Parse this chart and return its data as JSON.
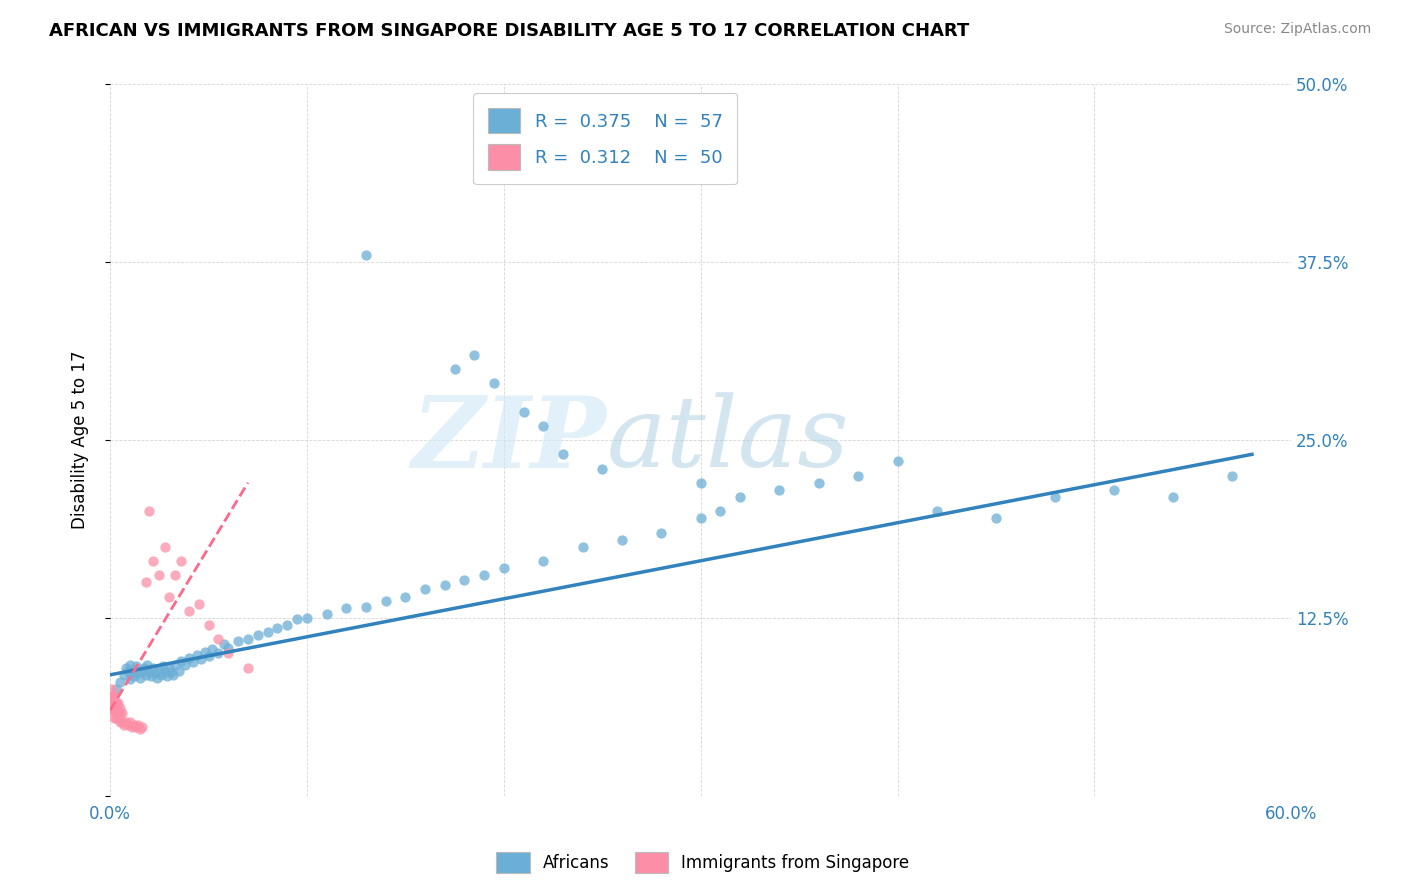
{
  "title": "AFRICAN VS IMMIGRANTS FROM SINGAPORE DISABILITY AGE 5 TO 17 CORRELATION CHART",
  "source": "Source: ZipAtlas.com",
  "ylabel": "Disability Age 5 to 17",
  "xlim": [
    0.0,
    0.6
  ],
  "ylim": [
    0.0,
    0.5
  ],
  "xticks": [
    0.0,
    0.1,
    0.2,
    0.3,
    0.4,
    0.5,
    0.6
  ],
  "yticks": [
    0.0,
    0.125,
    0.25,
    0.375,
    0.5
  ],
  "xticklabels": [
    "0.0%",
    "",
    "",
    "",
    "",
    "",
    "60.0%"
  ],
  "yticklabels_right": [
    "",
    "12.5%",
    "25.0%",
    "37.5%",
    "50.0%"
  ],
  "blue_color": "#6baed6",
  "pink_color": "#fc8fa7",
  "line_color": "#3182bd",
  "dashed_line_color": "#fb6a8a",
  "watermark_zip": "ZIP",
  "watermark_atlas": "atlas",
  "africans_x": [
    0.003,
    0.005,
    0.007,
    0.008,
    0.009,
    0.01,
    0.01,
    0.011,
    0.012,
    0.013,
    0.014,
    0.015,
    0.016,
    0.017,
    0.018,
    0.019,
    0.02,
    0.021,
    0.022,
    0.023,
    0.024,
    0.025,
    0.026,
    0.027,
    0.028,
    0.029,
    0.03,
    0.031,
    0.032,
    0.033,
    0.035,
    0.036,
    0.038,
    0.04,
    0.042,
    0.044,
    0.046,
    0.048,
    0.05,
    0.052,
    0.055,
    0.058,
    0.06,
    0.065,
    0.07,
    0.075,
    0.08,
    0.085,
    0.09,
    0.095,
    0.1,
    0.11,
    0.12,
    0.13,
    0.14,
    0.15,
    0.16,
    0.17,
    0.18,
    0.19,
    0.2,
    0.22,
    0.24,
    0.26,
    0.28,
    0.3,
    0.31,
    0.32,
    0.34,
    0.36,
    0.38,
    0.4,
    0.42,
    0.45,
    0.48,
    0.51,
    0.54,
    0.57
  ],
  "africans_y": [
    0.075,
    0.08,
    0.085,
    0.09,
    0.088,
    0.082,
    0.092,
    0.087,
    0.084,
    0.091,
    0.086,
    0.083,
    0.088,
    0.09,
    0.085,
    0.092,
    0.087,
    0.084,
    0.09,
    0.086,
    0.083,
    0.089,
    0.085,
    0.091,
    0.087,
    0.084,
    0.09,
    0.087,
    0.085,
    0.092,
    0.088,
    0.095,
    0.092,
    0.097,
    0.094,
    0.099,
    0.096,
    0.101,
    0.098,
    0.103,
    0.1,
    0.107,
    0.104,
    0.109,
    0.11,
    0.113,
    0.115,
    0.118,
    0.12,
    0.124,
    0.125,
    0.128,
    0.132,
    0.133,
    0.137,
    0.14,
    0.145,
    0.148,
    0.152,
    0.155,
    0.16,
    0.165,
    0.175,
    0.18,
    0.185,
    0.195,
    0.2,
    0.21,
    0.215,
    0.22,
    0.225,
    0.235,
    0.2,
    0.195,
    0.21,
    0.215,
    0.21,
    0.225
  ],
  "africans_y_outliers": [
    0.38,
    0.3,
    0.31,
    0.29,
    0.27,
    0.26,
    0.24,
    0.23,
    0.22
  ],
  "africans_x_outliers": [
    0.13,
    0.175,
    0.185,
    0.195,
    0.21,
    0.22,
    0.23,
    0.25,
    0.3
  ],
  "singapore_x": [
    0.0005,
    0.0008,
    0.001,
    0.001,
    0.0012,
    0.0013,
    0.0015,
    0.0017,
    0.002,
    0.002,
    0.0022,
    0.0025,
    0.0028,
    0.003,
    0.003,
    0.0032,
    0.0035,
    0.004,
    0.004,
    0.0042,
    0.0045,
    0.005,
    0.005,
    0.0052,
    0.006,
    0.006,
    0.007,
    0.008,
    0.009,
    0.01,
    0.011,
    0.012,
    0.013,
    0.014,
    0.015,
    0.016,
    0.018,
    0.02,
    0.022,
    0.025,
    0.028,
    0.03,
    0.033,
    0.036,
    0.04,
    0.045,
    0.05,
    0.055,
    0.06,
    0.07
  ],
  "singapore_y": [
    0.065,
    0.07,
    0.06,
    0.075,
    0.065,
    0.07,
    0.06,
    0.068,
    0.055,
    0.065,
    0.07,
    0.06,
    0.065,
    0.055,
    0.06,
    0.065,
    0.058,
    0.055,
    0.06,
    0.065,
    0.058,
    0.052,
    0.058,
    0.062,
    0.052,
    0.058,
    0.05,
    0.052,
    0.05,
    0.052,
    0.048,
    0.05,
    0.048,
    0.05,
    0.047,
    0.048,
    0.15,
    0.2,
    0.165,
    0.155,
    0.175,
    0.14,
    0.155,
    0.165,
    0.13,
    0.135,
    0.12,
    0.11,
    0.1,
    0.09
  ]
}
